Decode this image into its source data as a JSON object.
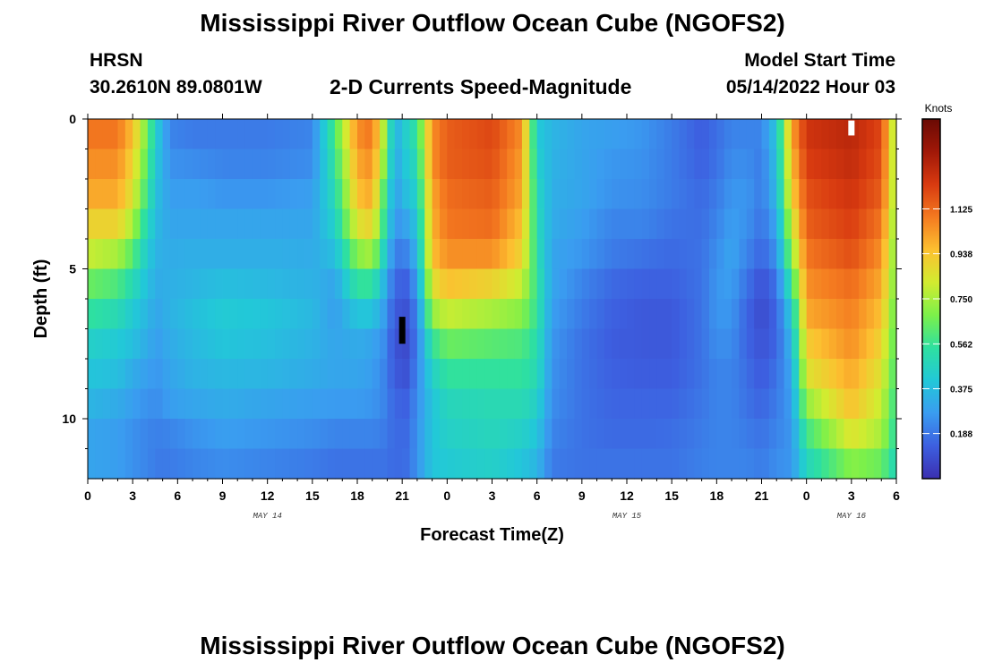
{
  "header": {
    "title": "Mississippi River Outflow Ocean Cube (NGOFS2)",
    "station": "HRSN",
    "coords": "30.2610N  89.0801W",
    "subtitle": "2-D Currents Speed-Magnitude",
    "model_start_label": "Model Start Time",
    "model_start_value": "05/14/2022 Hour 03"
  },
  "footer": {
    "title": "Mississippi River Outflow Ocean Cube (NGOFS2)"
  },
  "colorbar": {
    "units": "Knots",
    "tick_labels": [
      "1.125",
      "0.938",
      "0.750",
      "0.562",
      "0.375",
      "0.188"
    ],
    "tick_values": [
      1.125,
      0.938,
      0.75,
      0.562,
      0.375,
      0.188
    ],
    "range": [
      0,
      1.5
    ],
    "colors": [
      "#3b2fb0",
      "#3d5fe0",
      "#3a9cf0",
      "#22c8d8",
      "#2ee0a0",
      "#7cf04a",
      "#d2ec30",
      "#fcc030",
      "#f47a20",
      "#d83a10",
      "#a01808",
      "#6a0a04"
    ]
  },
  "chart_data": {
    "type": "heatmap",
    "title": "2-D Currents Speed-Magnitude",
    "xlabel": "Forecast Time(Z)",
    "ylabel": "Depth (ft)",
    "x_range_hours": [
      0,
      54
    ],
    "y_range_ft": [
      0,
      12
    ],
    "x_tick_hours": [
      0,
      3,
      6,
      9,
      12,
      15,
      18,
      21,
      24,
      27,
      30,
      33,
      36,
      39,
      42,
      45,
      48,
      51,
      54
    ],
    "x_tick_labels": [
      "0",
      "3",
      "6",
      "9",
      "12",
      "15",
      "18",
      "21",
      "0",
      "3",
      "6",
      "9",
      "12",
      "15",
      "18",
      "21",
      "0",
      "3",
      "6"
    ],
    "date_labels": [
      {
        "text": "MAY 14",
        "hour": 12
      },
      {
        "text": "MAY 15",
        "hour": 36
      },
      {
        "text": "MAY 16",
        "hour": 51
      }
    ],
    "y_tick_values": [
      0,
      5,
      10
    ],
    "y_tick_labels": [
      "0",
      "5",
      "10"
    ],
    "depth_levels_ft": [
      0.5,
      1.5,
      2.5,
      3.5,
      4.5,
      5.5,
      6.5,
      7.5,
      8.5,
      9.5,
      10.5,
      11.5
    ],
    "profile_keys_hours": [
      0,
      2,
      3,
      4,
      4.6,
      5.5,
      7,
      9,
      12,
      15,
      16.5,
      18,
      19,
      19.8,
      20.5,
      21.3,
      22,
      23,
      24,
      27,
      29,
      30,
      31,
      33,
      35,
      37,
      39,
      41,
      42,
      43,
      44,
      45,
      46,
      47,
      48,
      51,
      53,
      54
    ],
    "profiles_knots": [
      [
        1.1,
        1.05,
        1.0,
        0.9,
        0.8,
        0.65,
        0.55,
        0.45,
        0.4,
        0.35,
        0.3,
        0.3
      ],
      [
        1.1,
        1.05,
        1.0,
        0.9,
        0.75,
        0.6,
        0.5,
        0.42,
        0.38,
        0.32,
        0.28,
        0.28
      ],
      [
        0.95,
        0.9,
        0.85,
        0.75,
        0.62,
        0.5,
        0.42,
        0.38,
        0.32,
        0.28,
        0.25,
        0.25
      ],
      [
        0.65,
        0.6,
        0.55,
        0.48,
        0.42,
        0.38,
        0.35,
        0.32,
        0.28,
        0.25,
        0.22,
        0.22
      ],
      [
        0.42,
        0.4,
        0.38,
        0.36,
        0.34,
        0.32,
        0.3,
        0.28,
        0.26,
        0.24,
        0.21,
        0.2
      ],
      [
        0.22,
        0.25,
        0.28,
        0.3,
        0.32,
        0.33,
        0.34,
        0.32,
        0.3,
        0.28,
        0.22,
        0.2
      ],
      [
        0.2,
        0.24,
        0.28,
        0.3,
        0.33,
        0.35,
        0.38,
        0.36,
        0.34,
        0.3,
        0.25,
        0.22
      ],
      [
        0.2,
        0.22,
        0.26,
        0.3,
        0.33,
        0.38,
        0.42,
        0.4,
        0.36,
        0.32,
        0.28,
        0.24
      ],
      [
        0.2,
        0.22,
        0.26,
        0.3,
        0.33,
        0.36,
        0.4,
        0.38,
        0.35,
        0.3,
        0.26,
        0.22
      ],
      [
        0.22,
        0.24,
        0.28,
        0.3,
        0.32,
        0.34,
        0.36,
        0.34,
        0.32,
        0.28,
        0.24,
        0.2
      ],
      [
        0.6,
        0.55,
        0.5,
        0.45,
        0.38,
        0.3,
        0.28,
        0.3,
        0.3,
        0.27,
        0.22,
        0.18
      ],
      [
        1.05,
        1.0,
        0.95,
        0.85,
        0.7,
        0.55,
        0.4,
        0.32,
        0.3,
        0.27,
        0.22,
        0.18
      ],
      [
        1.1,
        1.05,
        1.0,
        0.9,
        0.75,
        0.55,
        0.4,
        0.3,
        0.28,
        0.26,
        0.22,
        0.18
      ],
      [
        0.75,
        0.7,
        0.6,
        0.55,
        0.45,
        0.35,
        0.28,
        0.24,
        0.22,
        0.22,
        0.2,
        0.18
      ],
      [
        0.32,
        0.3,
        0.28,
        0.25,
        0.2,
        0.15,
        0.12,
        0.1,
        0.12,
        0.15,
        0.16,
        0.16
      ],
      [
        0.45,
        0.42,
        0.38,
        0.3,
        0.22,
        0.14,
        0.1,
        0.08,
        0.1,
        0.14,
        0.16,
        0.17
      ],
      [
        0.55,
        0.5,
        0.45,
        0.4,
        0.35,
        0.28,
        0.22,
        0.2,
        0.22,
        0.24,
        0.25,
        0.25
      ],
      [
        1.05,
        1.05,
        1.0,
        0.98,
        0.95,
        0.85,
        0.72,
        0.55,
        0.45,
        0.4,
        0.4,
        0.4
      ],
      [
        1.15,
        1.15,
        1.12,
        1.1,
        1.05,
        0.95,
        0.8,
        0.65,
        0.55,
        0.48,
        0.45,
        0.42
      ],
      [
        1.2,
        1.18,
        1.15,
        1.12,
        1.05,
        0.9,
        0.75,
        0.62,
        0.55,
        0.5,
        0.48,
        0.45
      ],
      [
        1.05,
        1.02,
        1.0,
        0.95,
        0.9,
        0.8,
        0.7,
        0.6,
        0.55,
        0.5,
        0.45,
        0.4
      ],
      [
        0.42,
        0.45,
        0.48,
        0.5,
        0.52,
        0.55,
        0.55,
        0.52,
        0.5,
        0.45,
        0.4,
        0.35
      ],
      [
        0.35,
        0.34,
        0.33,
        0.32,
        0.3,
        0.3,
        0.28,
        0.26,
        0.25,
        0.24,
        0.22,
        0.2
      ],
      [
        0.3,
        0.3,
        0.3,
        0.28,
        0.26,
        0.22,
        0.2,
        0.18,
        0.18,
        0.18,
        0.18,
        0.18
      ],
      [
        0.28,
        0.26,
        0.25,
        0.22,
        0.2,
        0.16,
        0.14,
        0.13,
        0.14,
        0.15,
        0.16,
        0.18
      ],
      [
        0.26,
        0.25,
        0.24,
        0.22,
        0.18,
        0.14,
        0.12,
        0.12,
        0.13,
        0.15,
        0.16,
        0.18
      ],
      [
        0.2,
        0.2,
        0.2,
        0.18,
        0.16,
        0.14,
        0.12,
        0.12,
        0.13,
        0.15,
        0.17,
        0.18
      ],
      [
        0.13,
        0.14,
        0.16,
        0.17,
        0.18,
        0.18,
        0.18,
        0.18,
        0.18,
        0.19,
        0.2,
        0.21
      ],
      [
        0.17,
        0.18,
        0.2,
        0.22,
        0.24,
        0.26,
        0.26,
        0.24,
        0.22,
        0.22,
        0.22,
        0.22
      ],
      [
        0.22,
        0.24,
        0.26,
        0.28,
        0.3,
        0.28,
        0.26,
        0.24,
        0.22,
        0.22,
        0.22,
        0.22
      ],
      [
        0.22,
        0.24,
        0.26,
        0.25,
        0.22,
        0.18,
        0.15,
        0.15,
        0.17,
        0.18,
        0.2,
        0.22
      ],
      [
        0.22,
        0.2,
        0.2,
        0.18,
        0.15,
        0.1,
        0.08,
        0.1,
        0.12,
        0.15,
        0.18,
        0.2
      ],
      [
        0.4,
        0.38,
        0.36,
        0.3,
        0.25,
        0.18,
        0.15,
        0.15,
        0.18,
        0.2,
        0.22,
        0.24
      ],
      [
        1.0,
        0.95,
        0.9,
        0.8,
        0.7,
        0.55,
        0.42,
        0.35,
        0.3,
        0.28,
        0.26,
        0.26
      ],
      [
        1.25,
        1.22,
        1.18,
        1.15,
        1.1,
        1.05,
        1.0,
        0.92,
        0.85,
        0.72,
        0.58,
        0.48
      ],
      [
        1.3,
        1.28,
        1.25,
        1.22,
        1.18,
        1.12,
        1.08,
        1.05,
        1.0,
        0.95,
        0.85,
        0.7
      ],
      [
        1.2,
        1.18,
        1.15,
        1.1,
        1.05,
        1.0,
        0.95,
        0.9,
        0.85,
        0.8,
        0.75,
        0.65
      ],
      [
        0.7,
        0.7,
        0.7,
        0.68,
        0.66,
        0.65,
        0.62,
        0.6,
        0.58,
        0.55,
        0.52,
        0.48
      ]
    ],
    "markers": [
      {
        "hour": 21,
        "depth_from_ft": 6.6,
        "depth_to_ft": 7.5,
        "color": "#000000"
      },
      {
        "hour": 51,
        "depth_from_ft": 0.05,
        "depth_to_ft": 0.55,
        "color": "#ffffff"
      }
    ]
  }
}
